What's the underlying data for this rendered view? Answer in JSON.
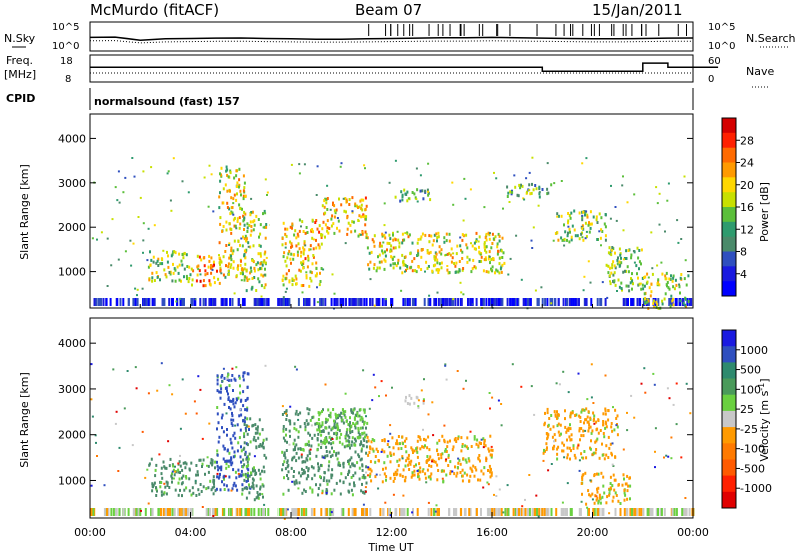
{
  "header": {
    "station": "McMurdo (fitACF)",
    "beam": "Beam 07",
    "date": "15/Jan/2011"
  },
  "top_panels": {
    "nsky_label": "N.Sky",
    "nsky_ticks": [
      "10^5",
      "10^0"
    ],
    "nsearch_label": "N.Search",
    "nsearch_ticks": [
      "10^5",
      "10^0"
    ],
    "freq_label_1": "Freq.",
    "freq_label_2": "[MHz]",
    "freq_ticks": [
      "18",
      "8"
    ],
    "nave_label": "Nave",
    "nave_ticks": [
      "60",
      "0"
    ],
    "cpid_label": "CPID",
    "cpid_value": "normalsound (fast) 157"
  },
  "chart_data": [
    {
      "type": "heatmap",
      "name_key": "power",
      "ylabel": "Slant Range [km]",
      "ylim": [
        180,
        4550
      ],
      "yticks": [
        "1000",
        "2000",
        "3000",
        "4000"
      ],
      "colorbar_label": "Power [dB]",
      "colorbar_ticks": [
        "28",
        "24",
        "20",
        "16",
        "12",
        "8",
        "4"
      ],
      "colorbar_colors": [
        "#d40000",
        "#ff2000",
        "#ff6a00",
        "#ff9a00",
        "#ffd700",
        "#c8e000",
        "#5bbf3a",
        "#2e9b6e",
        "#4a8a6a",
        "#2f4fbf",
        "#1a1ae0",
        "#0000ff"
      ],
      "regions": [
        {
          "t0": 2.3,
          "t1": 4.1,
          "r0": 800,
          "r1": 1500,
          "level": 0.45
        },
        {
          "t0": 4.0,
          "t1": 5.2,
          "r0": 700,
          "r1": 1400,
          "level": 0.7
        },
        {
          "t0": 5.1,
          "t1": 6.2,
          "r0": 900,
          "r1": 3400,
          "level": 0.55
        },
        {
          "t0": 6.1,
          "t1": 7.0,
          "r0": 600,
          "r1": 2400,
          "level": 0.5
        },
        {
          "t0": 7.6,
          "t1": 9.2,
          "r0": 700,
          "r1": 2200,
          "level": 0.6
        },
        {
          "t0": 9.2,
          "t1": 11.0,
          "r0": 1800,
          "r1": 2700,
          "level": 0.6
        },
        {
          "t0": 11.0,
          "t1": 16.5,
          "r0": 1000,
          "r1": 1900,
          "level": 0.55
        },
        {
          "t0": 12.0,
          "t1": 13.5,
          "r0": 2600,
          "r1": 2900,
          "level": 0.3
        },
        {
          "t0": 16.5,
          "t1": 18.5,
          "r0": 2700,
          "r1": 3000,
          "level": 0.35
        },
        {
          "t0": 18.5,
          "t1": 20.5,
          "r0": 1700,
          "r1": 2400,
          "level": 0.45
        },
        {
          "t0": 20.5,
          "t1": 22.0,
          "r0": 600,
          "r1": 1600,
          "level": 0.4
        },
        {
          "t0": 22.0,
          "t1": 23.8,
          "r0": 200,
          "r1": 1000,
          "level": 0.5
        }
      ]
    },
    {
      "type": "heatmap",
      "name_key": "velocity",
      "ylabel": "Slant Range [km]",
      "xlabel": "Time UT",
      "ylim": [
        180,
        4550
      ],
      "yticks": [
        "1000",
        "2000",
        "3000",
        "4000"
      ],
      "xticks": [
        "00:00",
        "04:00",
        "08:00",
        "12:00",
        "16:00",
        "20:00",
        "00:00"
      ],
      "colorbar_label": "Velocity [m s",
      "colorbar_label_sup": "-1",
      "colorbar_ticks": [
        "1000",
        "500",
        "100",
        "25",
        "-25",
        "-100",
        "-500",
        "-1000"
      ],
      "colorbar_colors": [
        "#1a1ae0",
        "#2f4fbf",
        "#2e8a6e",
        "#4a9a5a",
        "#6ad040",
        "#c8c8c8",
        "#ff9a00",
        "#ff7a00",
        "#ff5a00",
        "#ff2000",
        "#e00000"
      ],
      "regions": [
        {
          "t0": 2.3,
          "t1": 5.0,
          "r0": 700,
          "r1": 1500,
          "color": "#4a8a6a"
        },
        {
          "t0": 5.0,
          "t1": 6.3,
          "r0": 800,
          "r1": 3400,
          "color": "#2f4fbf"
        },
        {
          "t0": 6.0,
          "t1": 7.0,
          "r0": 600,
          "r1": 2400,
          "color": "#4a8a6a"
        },
        {
          "t0": 7.6,
          "t1": 11.0,
          "r0": 700,
          "r1": 2600,
          "color": "#4a8a6a"
        },
        {
          "t0": 9.0,
          "t1": 11.0,
          "r0": 1800,
          "r1": 2600,
          "color": "#6ad040"
        },
        {
          "t0": 11.0,
          "t1": 16.0,
          "r0": 1000,
          "r1": 2000,
          "color": "#ff9a00"
        },
        {
          "t0": 18.0,
          "t1": 21.0,
          "r0": 1500,
          "r1": 2600,
          "color": "#ff9a00"
        },
        {
          "t0": 19.5,
          "t1": 21.5,
          "r0": 500,
          "r1": 1200,
          "color": "#ff9a00"
        },
        {
          "t0": 12.5,
          "t1": 13.5,
          "r0": 2700,
          "r1": 2900,
          "color": "#c8c8c8"
        }
      ]
    }
  ],
  "top_series": {
    "nsky_profile": [
      0.78,
      0.8,
      0.62,
      0.7,
      0.72,
      0.74,
      0.75,
      0.72,
      0.7,
      0.68,
      0.68,
      0.7,
      0.72,
      0.74,
      0.76,
      0.76,
      0.78,
      0.76,
      0.74,
      0.72,
      0.7,
      0.7,
      0.72,
      0.74,
      0.75
    ],
    "freq_profile": [
      0.55,
      0.55,
      0.55,
      0.55,
      0.55,
      0.55,
      0.55,
      0.55,
      0.55,
      0.55,
      0.55,
      0.55,
      0.55,
      0.55,
      0.55,
      0.55,
      0.55,
      0.55,
      0.4,
      0.4,
      0.4,
      0.4,
      0.7,
      0.55,
      0.55
    ]
  },
  "colors": {
    "frame": "#000000",
    "empty": "#ffffff"
  }
}
